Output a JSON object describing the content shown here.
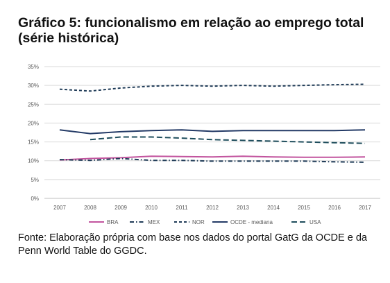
{
  "figure": {
    "title": "Gráfico 5: funcionalismo em relação ao emprego total (série histórica)",
    "source": "Fonte: Elaboração própria com base nos dados do portal GatG da OCDE e da Penn World Table do GGDC."
  },
  "chart_data": {
    "type": "line",
    "title": "Gráfico 5: funcionalismo em relação ao emprego total (série histórica)",
    "xlabel": "",
    "ylabel": "",
    "ylim": [
      0,
      35
    ],
    "y_ticks": [
      "0%",
      "5%",
      "10%",
      "15%",
      "20%",
      "25%",
      "30%",
      "35%"
    ],
    "x": [
      "2007",
      "2008",
      "2009",
      "2010",
      "2011",
      "2012",
      "2013",
      "2014",
      "2015",
      "2016",
      "2017"
    ],
    "grid": true,
    "legend": "bottom",
    "series": [
      {
        "name": "BRA",
        "color": "#c2549e",
        "dash": "solid",
        "values": [
          10.2,
          10.6,
          10.8,
          11.2,
          11.1,
          11.0,
          11.2,
          11.0,
          10.9,
          10.9,
          11.0
        ]
      },
      {
        "name": "MEX",
        "color": "#1f3b57",
        "dash": "dashdot",
        "values": [
          10.3,
          10.1,
          10.6,
          10.1,
          10.1,
          9.9,
          9.9,
          9.9,
          9.9,
          9.7,
          9.6
        ]
      },
      {
        "name": "NOR",
        "color": "#1f3b57",
        "dash": "dash",
        "values": [
          29.0,
          28.5,
          29.3,
          29.8,
          30.0,
          29.8,
          30.0,
          29.8,
          30.0,
          30.2,
          30.3
        ]
      },
      {
        "name": "OCDE - mediana",
        "color": "#233a66",
        "dash": "solid",
        "values": [
          18.2,
          17.2,
          17.7,
          18.0,
          18.2,
          17.8,
          18.0,
          18.0,
          18.0,
          18.0,
          18.2
        ]
      },
      {
        "name": "USA",
        "color": "#1e4d5c",
        "dash": "longdash",
        "values": [
          null,
          15.6,
          16.3,
          16.3,
          16.0,
          15.6,
          15.4,
          15.2,
          15.0,
          14.8,
          14.6
        ]
      }
    ]
  }
}
